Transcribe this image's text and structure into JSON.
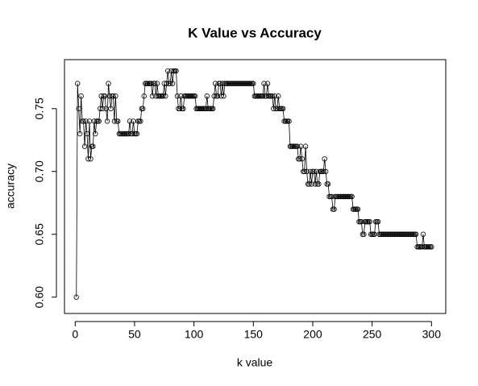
{
  "chart_data": {
    "type": "line",
    "title": "K Value vs Accuracy",
    "x_label": "k value",
    "y_label": "accuracy",
    "x": [
      1,
      2,
      3,
      4,
      5,
      6,
      7,
      8,
      9,
      10,
      11,
      12,
      13,
      14,
      15,
      16,
      17,
      18,
      19,
      20,
      21,
      22,
      23,
      24,
      25,
      26,
      27,
      28,
      29,
      30,
      31,
      32,
      33,
      34,
      35,
      36,
      37,
      38,
      39,
      40,
      41,
      42,
      43,
      44,
      45,
      46,
      47,
      48,
      49,
      50,
      51,
      52,
      53,
      54,
      55,
      56,
      57,
      58,
      59,
      60,
      61,
      62,
      63,
      64,
      65,
      66,
      67,
      68,
      69,
      70,
      71,
      72,
      73,
      74,
      75,
      76,
      77,
      78,
      79,
      80,
      81,
      82,
      83,
      84,
      85,
      86,
      87,
      88,
      89,
      90,
      91,
      92,
      93,
      94,
      95,
      96,
      97,
      98,
      99,
      100,
      101,
      102,
      103,
      104,
      105,
      106,
      107,
      108,
      109,
      110,
      111,
      112,
      113,
      114,
      115,
      116,
      117,
      118,
      119,
      120,
      121,
      122,
      123,
      124,
      125,
      126,
      127,
      128,
      129,
      130,
      131,
      132,
      133,
      134,
      135,
      136,
      137,
      138,
      139,
      140,
      141,
      142,
      143,
      144,
      145,
      146,
      147,
      148,
      149,
      150,
      151,
      152,
      153,
      154,
      155,
      156,
      157,
      158,
      159,
      160,
      161,
      162,
      163,
      164,
      165,
      166,
      167,
      168,
      169,
      170,
      171,
      172,
      173,
      174,
      175,
      176,
      177,
      178,
      179,
      180,
      181,
      182,
      183,
      184,
      185,
      186,
      187,
      188,
      189,
      190,
      191,
      192,
      193,
      194,
      195,
      196,
      197,
      198,
      199,
      200,
      201,
      202,
      203,
      204,
      205,
      206,
      207,
      208,
      209,
      210,
      211,
      212,
      213,
      214,
      215,
      216,
      217,
      218,
      219,
      220,
      221,
      222,
      223,
      224,
      225,
      226,
      227,
      228,
      229,
      230,
      231,
      232,
      233,
      234,
      235,
      236,
      237,
      238,
      239,
      240,
      241,
      242,
      243,
      244,
      245,
      246,
      247,
      248,
      249,
      250,
      251,
      252,
      253,
      254,
      255,
      256,
      257,
      258,
      259,
      260,
      261,
      262,
      263,
      264,
      265,
      266,
      267,
      268,
      269,
      270,
      271,
      272,
      273,
      274,
      275,
      276,
      277,
      278,
      279,
      280,
      281,
      282,
      283,
      284,
      285,
      286,
      287,
      288,
      289,
      290,
      291,
      292,
      293,
      294,
      295,
      296,
      297,
      298,
      299,
      300
    ],
    "values": [
      0.6,
      0.77,
      0.75,
      0.73,
      0.76,
      0.74,
      0.74,
      0.72,
      0.74,
      0.73,
      0.71,
      0.74,
      0.71,
      0.72,
      0.72,
      0.74,
      0.73,
      0.74,
      0.74,
      0.74,
      0.75,
      0.76,
      0.75,
      0.76,
      0.76,
      0.75,
      0.74,
      0.77,
      0.76,
      0.75,
      0.76,
      0.76,
      0.74,
      0.76,
      0.74,
      0.74,
      0.73,
      0.73,
      0.73,
      0.73,
      0.73,
      0.73,
      0.73,
      0.73,
      0.73,
      0.74,
      0.73,
      0.73,
      0.74,
      0.73,
      0.73,
      0.73,
      0.74,
      0.74,
      0.74,
      0.75,
      0.75,
      0.76,
      0.77,
      0.77,
      0.77,
      0.77,
      0.77,
      0.77,
      0.76,
      0.77,
      0.77,
      0.76,
      0.77,
      0.76,
      0.76,
      0.76,
      0.76,
      0.76,
      0.77,
      0.76,
      0.77,
      0.78,
      0.77,
      0.77,
      0.78,
      0.77,
      0.78,
      0.78,
      0.78,
      0.76,
      0.75,
      0.75,
      0.76,
      0.75,
      0.75,
      0.76,
      0.76,
      0.76,
      0.76,
      0.76,
      0.76,
      0.76,
      0.76,
      0.76,
      0.76,
      0.75,
      0.75,
      0.75,
      0.75,
      0.75,
      0.75,
      0.75,
      0.75,
      0.75,
      0.76,
      0.75,
      0.75,
      0.75,
      0.75,
      0.75,
      0.76,
      0.77,
      0.76,
      0.76,
      0.77,
      0.77,
      0.76,
      0.77,
      0.76,
      0.77,
      0.77,
      0.77,
      0.77,
      0.77,
      0.77,
      0.77,
      0.77,
      0.77,
      0.77,
      0.77,
      0.77,
      0.77,
      0.77,
      0.77,
      0.77,
      0.77,
      0.77,
      0.77,
      0.77,
      0.77,
      0.77,
      0.77,
      0.77,
      0.77,
      0.76,
      0.76,
      0.76,
      0.76,
      0.76,
      0.76,
      0.76,
      0.76,
      0.77,
      0.76,
      0.76,
      0.77,
      0.76,
      0.76,
      0.76,
      0.76,
      0.75,
      0.76,
      0.75,
      0.75,
      0.76,
      0.75,
      0.75,
      0.75,
      0.75,
      0.74,
      0.74,
      0.74,
      0.74,
      0.74,
      0.72,
      0.72,
      0.72,
      0.72,
      0.72,
      0.72,
      0.72,
      0.71,
      0.71,
      0.72,
      0.71,
      0.7,
      0.7,
      0.72,
      0.7,
      0.69,
      0.69,
      0.7,
      0.69,
      0.7,
      0.7,
      0.69,
      0.7,
      0.69,
      0.69,
      0.7,
      0.7,
      0.7,
      0.7,
      0.71,
      0.7,
      0.69,
      0.69,
      0.68,
      0.68,
      0.68,
      0.67,
      0.67,
      0.68,
      0.68,
      0.68,
      0.68,
      0.68,
      0.68,
      0.68,
      0.68,
      0.68,
      0.68,
      0.68,
      0.68,
      0.68,
      0.68,
      0.68,
      0.67,
      0.67,
      0.67,
      0.67,
      0.67,
      0.66,
      0.66,
      0.66,
      0.65,
      0.65,
      0.66,
      0.66,
      0.66,
      0.66,
      0.66,
      0.65,
      0.65,
      0.65,
      0.65,
      0.66,
      0.66,
      0.66,
      0.65,
      0.65,
      0.65,
      0.65,
      0.65,
      0.65,
      0.65,
      0.65,
      0.65,
      0.65,
      0.65,
      0.65,
      0.65,
      0.65,
      0.65,
      0.65,
      0.65,
      0.65,
      0.65,
      0.65,
      0.65,
      0.65,
      0.65,
      0.65,
      0.65,
      0.65,
      0.65,
      0.65,
      0.65,
      0.65,
      0.65,
      0.65,
      0.64,
      0.64,
      0.64,
      0.64,
      0.64,
      0.65,
      0.64,
      0.64,
      0.64,
      0.64,
      0.64,
      0.64,
      0.64
    ],
    "color": "#000000",
    "xlim": [
      -9,
      312
    ],
    "xticks": [
      0,
      50,
      100,
      150,
      200,
      250,
      300
    ],
    "ylim": [
      0.587,
      0.789
    ],
    "yticks": [
      {
        "value": 0.6,
        "label": "0.60"
      },
      0.65,
      {
        "value": 0.7,
        "label": "0.70"
      },
      0.75
    ],
    "grid": false
  }
}
